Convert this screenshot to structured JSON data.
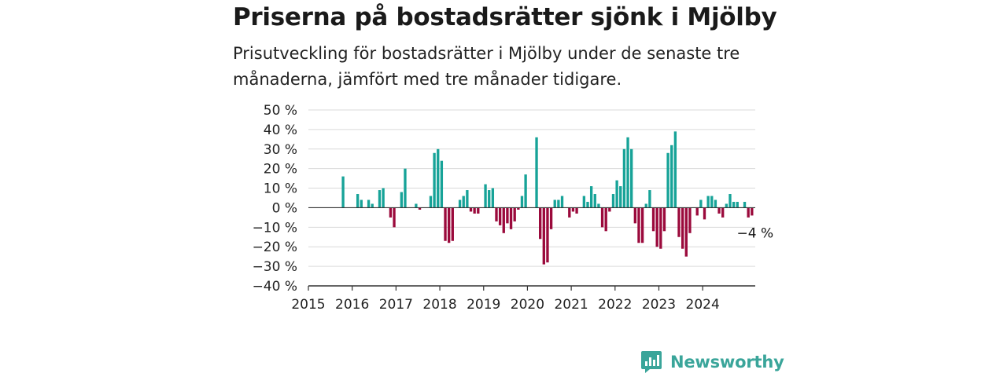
{
  "title": "Priserna på bostadsrätter sjönk i Mjölby",
  "subtitle": "Prisutveckling för bostadsrätter i Mjölby under de senaste tre månaderna, jämfört med tre månader tidigare.",
  "brand": {
    "name": "Newsworthy",
    "color": "#3aa59a"
  },
  "colors": {
    "positive": "#17a398",
    "negative": "#9b0a3c",
    "grid": "#d9d9d9",
    "axis": "#333333"
  },
  "chart_data": {
    "type": "bar",
    "title": "Priserna på bostadsrätter sjönk i Mjölby",
    "subtitle": "Prisutveckling för bostadsrätter i Mjölby under de senaste tre månaderna, jämfört med tre månader tidigare.",
    "x_start": 2015,
    "xlim": [
      2015,
      2025.2
    ],
    "ylim": [
      -40,
      50
    ],
    "y_ticks": [
      50,
      40,
      30,
      20,
      10,
      0,
      -10,
      -20,
      -30,
      -40
    ],
    "y_tick_labels": [
      "50 %",
      "40 %",
      "30 %",
      "20 %",
      "10 %",
      "0 %",
      "−10 %",
      "−20 %",
      "−30 %",
      "−40 %"
    ],
    "x_ticks": [
      "2015",
      "2016",
      "2017",
      "2018",
      "2019",
      "2020",
      "2021",
      "2022",
      "2023",
      "2024"
    ],
    "bars_per_year": 12,
    "grid": true,
    "last_value_label": "−4 %",
    "values": [
      null,
      null,
      null,
      null,
      null,
      null,
      null,
      null,
      null,
      16,
      null,
      null,
      null,
      7,
      4,
      null,
      4,
      2,
      null,
      9,
      10,
      null,
      -5,
      -10,
      null,
      8,
      20,
      null,
      null,
      2,
      -1,
      null,
      null,
      6,
      28,
      30,
      24,
      -17,
      -18,
      -17,
      null,
      4,
      6,
      9,
      -2,
      -3,
      -3,
      null,
      12,
      9,
      10,
      -7,
      -9,
      -13,
      -8,
      -11,
      -7,
      -1,
      6,
      17,
      null,
      null,
      36,
      -16,
      -29,
      -28,
      -11,
      4,
      4,
      6,
      null,
      -5,
      -2,
      -3,
      null,
      6,
      3,
      11,
      7,
      2,
      -10,
      -12,
      -2,
      7,
      14,
      11,
      30,
      36,
      30,
      -8,
      -18,
      -18,
      2,
      9,
      -12,
      -20,
      -21,
      -12,
      28,
      32,
      39,
      -15,
      -21,
      -25,
      -13,
      null,
      -4,
      4,
      -6,
      6,
      6,
      4,
      -3,
      -5,
      2,
      7,
      3,
      3,
      null,
      3,
      -5,
      -4
    ]
  }
}
